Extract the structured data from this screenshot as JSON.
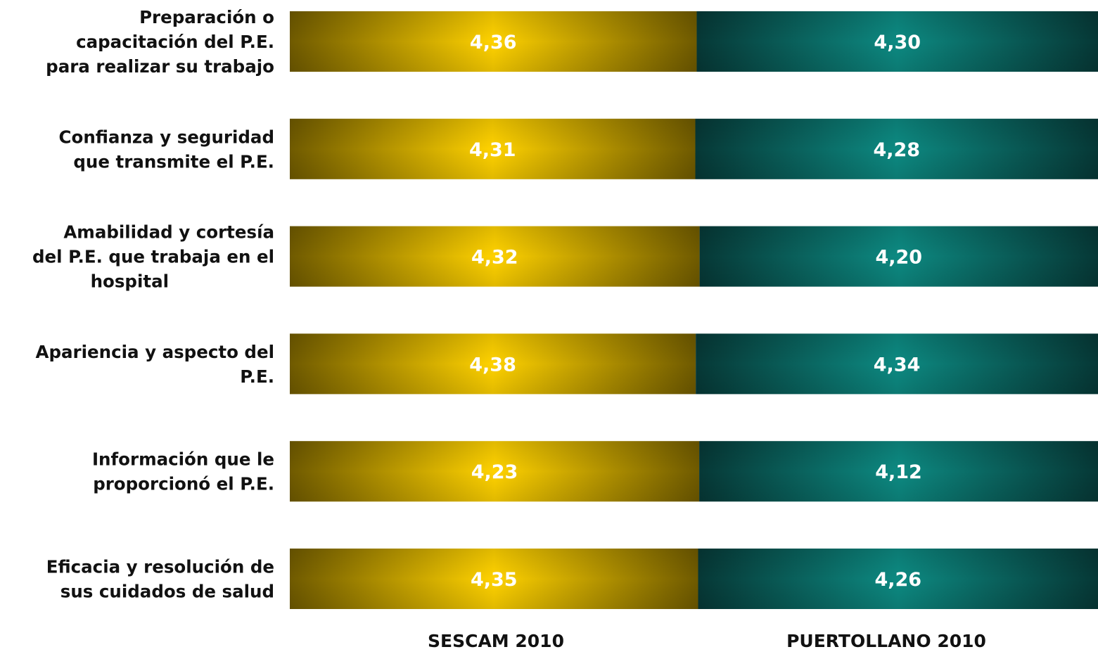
{
  "chart_data": {
    "type": "bar",
    "orientation": "horizontal",
    "stacked": "100%",
    "categories": [
      "Preparación o capacitación del P.E. para realizar su trabajo",
      "Confianza y seguridad que transmite el P.E.",
      "Amabilidad y cortesía del P.E. que trabaja en el hospital",
      "Apariencia y aspecto del P.E.",
      "Información que le proporcionó el P.E.",
      "Eficacia y resolución de sus cuidados de salud"
    ],
    "category_lines": [
      [
        "Preparación o",
        "capacitación del P.E.",
        "para realizar su trabajo"
      ],
      [
        "Confianza y seguridad",
        "que transmite el P.E."
      ],
      [
        "Amabilidad y cortesía",
        "del P.E. que trabaja en el",
        "hospital"
      ],
      [
        "Apariencia y aspecto del",
        "P.E."
      ],
      [
        "Información que le",
        "proporcionó el P.E."
      ],
      [
        "Eficacia y resolución de",
        "sus cuidados de salud"
      ]
    ],
    "series": [
      {
        "name": "SESCAM 2010",
        "values": [
          4.36,
          4.31,
          4.32,
          4.38,
          4.23,
          4.35
        ],
        "labels": [
          "4,36",
          "4,31",
          "4,32",
          "4,38",
          "4,23",
          "4,35"
        ],
        "color": "#f5c400"
      },
      {
        "name": "PUERTOLLANO  2010",
        "values": [
          4.3,
          4.28,
          4.2,
          4.34,
          4.12,
          4.26
        ],
        "labels": [
          "4,30",
          "4,28",
          "4,20",
          "4,34",
          "4,12",
          "4,26"
        ],
        "color": "#0e8078"
      }
    ],
    "legend": "bottom",
    "grid": false
  }
}
